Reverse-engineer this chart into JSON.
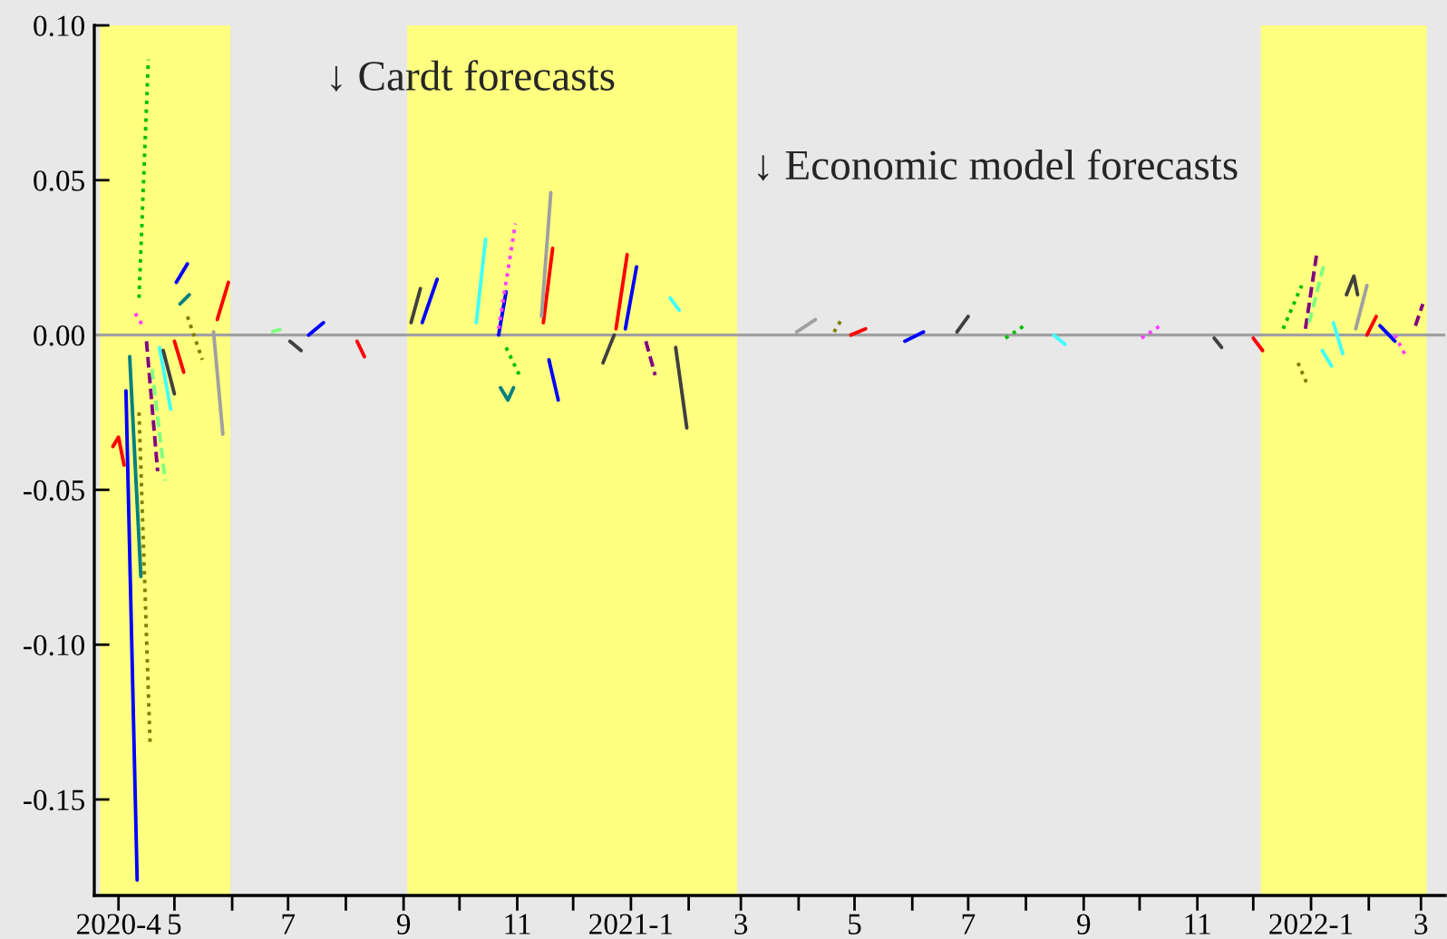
{
  "chart_data": {
    "type": "line",
    "annotations": [
      "↓ Cardt forecasts",
      "↓ Economic model forecasts"
    ],
    "xlim": [
      "2020-03-19",
      "2022-03-14"
    ],
    "xticks": [
      {
        "value": "2020-04",
        "label": "2020-4"
      },
      {
        "value": "2020-05",
        "label": "5"
      },
      {
        "value": "2020-06",
        "label": null
      },
      {
        "value": "2020-07",
        "label": "7"
      },
      {
        "value": "2020-08",
        "label": null
      },
      {
        "value": "2020-09",
        "label": "9"
      },
      {
        "value": "2020-10",
        "label": null
      },
      {
        "value": "2020-11",
        "label": "11"
      },
      {
        "value": "2020-12",
        "label": null
      },
      {
        "value": "2021-01",
        "label": "2021-1"
      },
      {
        "value": "2021-02",
        "label": null
      },
      {
        "value": "2021-03",
        "label": "3"
      },
      {
        "value": "2021-04",
        "label": null
      },
      {
        "value": "2021-05",
        "label": "5"
      },
      {
        "value": "2021-06",
        "label": null
      },
      {
        "value": "2021-07",
        "label": "7"
      },
      {
        "value": "2021-08",
        "label": null
      },
      {
        "value": "2021-09",
        "label": "9"
      },
      {
        "value": "2021-10",
        "label": null
      },
      {
        "value": "2021-11",
        "label": "11"
      },
      {
        "value": "2021-12",
        "label": null
      },
      {
        "value": "2022-01",
        "label": "2022-1"
      },
      {
        "value": "2022-02",
        "label": null
      },
      {
        "value": "2022-03",
        "label": "3"
      }
    ],
    "ylim": [
      -0.181,
      0.1
    ],
    "yticks": [
      {
        "value": -0.15,
        "label": "-0.15"
      },
      {
        "value": -0.1,
        "label": "-0.10"
      },
      {
        "value": -0.05,
        "label": "-0.05"
      },
      {
        "value": 0,
        "label": "0.00"
      },
      {
        "value": 0.05,
        "label": "0.05"
      },
      {
        "value": 0.1,
        "label": "0.10"
      }
    ],
    "marker": "none",
    "ref_lines": [
      {
        "axis": "y",
        "value": 0,
        "color": "#a0a0a0"
      }
    ],
    "bands": [
      {
        "axis": "x",
        "from": "2020-03-22",
        "to": "2020-05-31",
        "color": "#ffff80"
      },
      {
        "axis": "x",
        "from": "2020-09-03",
        "to": "2021-02-27",
        "color": "#ffff80"
      },
      {
        "axis": "x",
        "from": "2021-12-05",
        "to": "2022-03-04",
        "color": "#ffff80"
      }
    ],
    "series": [
      {
        "color": "#ff0000",
        "line_style": "solid",
        "x": [
          "2020-03-29",
          "2020-04-01",
          "2020-04-04"
        ],
        "values": [
          -0.036,
          -0.033,
          -0.042
        ]
      },
      {
        "color": "#ff0000",
        "line_style": "solid",
        "x": [
          "2020-05-01",
          "2020-05-06"
        ],
        "values": [
          -0.002,
          -0.012
        ]
      },
      {
        "color": "#ff0000",
        "line_style": "solid",
        "x": [
          "2020-05-24",
          "2020-05-30"
        ],
        "values": [
          0.005,
          0.017
        ]
      },
      {
        "color": "#ff0000",
        "line_style": "solid",
        "x": [
          "2020-08-07",
          "2020-08-11"
        ],
        "values": [
          -0.002,
          -0.007
        ]
      },
      {
        "color": "#ff0000",
        "line_style": "solid",
        "x": [
          "2020-11-15",
          "2020-11-20"
        ],
        "values": [
          0.004,
          0.028
        ]
      },
      {
        "color": "#ff0000",
        "line_style": "solid",
        "x": [
          "2020-12-24",
          "2020-12-30"
        ],
        "values": [
          0.002,
          0.026
        ]
      },
      {
        "color": "#ff0000",
        "line_style": "solid",
        "x": [
          "2021-04-29",
          "2021-05-07"
        ],
        "values": [
          0.0,
          0.002
        ]
      },
      {
        "color": "#ff0000",
        "line_style": "solid",
        "x": [
          "2021-12-01",
          "2021-12-06"
        ],
        "values": [
          -0.001,
          -0.005
        ]
      },
      {
        "color": "#ff0000",
        "line_style": "solid",
        "x": [
          "2022-01-31",
          "2022-02-05"
        ],
        "values": [
          0.0,
          0.006
        ]
      },
      {
        "color": "#0000ff",
        "line_style": "solid",
        "x": [
          "2020-04-05",
          "2020-04-11"
        ],
        "values": [
          -0.018,
          -0.176
        ]
      },
      {
        "color": "#0000ff",
        "line_style": "solid",
        "x": [
          "2020-05-02",
          "2020-05-08"
        ],
        "values": [
          0.017,
          0.023
        ]
      },
      {
        "color": "#0000ff",
        "line_style": "solid",
        "x": [
          "2020-07-12",
          "2020-07-20"
        ],
        "values": [
          0.0,
          0.004
        ]
      },
      {
        "color": "#0000ff",
        "line_style": "solid",
        "x": [
          "2020-09-11",
          "2020-09-19"
        ],
        "values": [
          0.004,
          0.018
        ]
      },
      {
        "color": "#0000ff",
        "line_style": "solid",
        "x": [
          "2020-10-22",
          "2020-10-26"
        ],
        "values": [
          0.0,
          0.014
        ]
      },
      {
        "color": "#0000ff",
        "line_style": "solid",
        "x": [
          "2020-11-18",
          "2020-11-23"
        ],
        "values": [
          -0.008,
          -0.021
        ]
      },
      {
        "color": "#0000ff",
        "line_style": "solid",
        "x": [
          "2020-12-29",
          "2021-01-04"
        ],
        "values": [
          0.002,
          0.022
        ]
      },
      {
        "color": "#0000ff",
        "line_style": "solid",
        "x": [
          "2021-05-28",
          "2021-06-07"
        ],
        "values": [
          -0.002,
          0.001
        ]
      },
      {
        "color": "#0000ff",
        "line_style": "solid",
        "x": [
          "2022-02-07",
          "2022-02-15"
        ],
        "values": [
          0.003,
          -0.002
        ]
      },
      {
        "color": "#00c000",
        "line_style": "dotted",
        "x": [
          "2020-04-12",
          "2020-04-17"
        ],
        "values": [
          0.012,
          0.089
        ]
      },
      {
        "color": "#00c000",
        "line_style": "dotted",
        "x": [
          "2020-10-26",
          "2020-11-03"
        ],
        "values": [
          -0.004,
          -0.014
        ]
      },
      {
        "color": "#00c000",
        "line_style": "dotted",
        "x": [
          "2021-07-21",
          "2021-07-31"
        ],
        "values": [
          -0.001,
          0.003
        ]
      },
      {
        "color": "#00c000",
        "line_style": "dotted",
        "x": [
          "2021-12-17",
          "2021-12-27"
        ],
        "values": [
          0.002,
          0.016
        ]
      },
      {
        "color": "#808000",
        "line_style": "dotted",
        "x": [
          "2020-04-12",
          "2020-04-18"
        ],
        "values": [
          -0.025,
          -0.133
        ]
      },
      {
        "color": "#808000",
        "line_style": "dotted",
        "x": [
          "2020-05-08",
          "2020-05-16"
        ],
        "values": [
          0.006,
          -0.008
        ]
      },
      {
        "color": "#808000",
        "line_style": "dotted",
        "x": [
          "2021-04-20",
          "2021-04-24"
        ],
        "values": [
          0.001,
          0.005
        ]
      },
      {
        "color": "#808000",
        "line_style": "dotted",
        "x": [
          "2021-12-25",
          "2021-12-30"
        ],
        "values": [
          -0.009,
          -0.016
        ]
      },
      {
        "color": "#ff40ff",
        "line_style": "dotted",
        "x": [
          "2020-04-10",
          "2020-04-14"
        ],
        "values": [
          0.007,
          0.003
        ]
      },
      {
        "color": "#ff40ff",
        "line_style": "dotted",
        "x": [
          "2020-10-22",
          "2020-10-31"
        ],
        "values": [
          0.002,
          0.036
        ]
      },
      {
        "color": "#ff40ff",
        "line_style": "dotted",
        "x": [
          "2021-10-02",
          "2021-10-12"
        ],
        "values": [
          -0.001,
          0.003
        ]
      },
      {
        "color": "#ff40ff",
        "line_style": "dotted",
        "x": [
          "2022-02-15",
          "2022-02-21"
        ],
        "values": [
          0.0,
          -0.007
        ]
      },
      {
        "color": "#40ffff",
        "line_style": "solid",
        "x": [
          "2020-04-23",
          "2020-04-29"
        ],
        "values": [
          -0.004,
          -0.024
        ]
      },
      {
        "color": "#40ffff",
        "line_style": "solid",
        "x": [
          "2020-10-10",
          "2020-10-15"
        ],
        "values": [
          0.004,
          0.031
        ]
      },
      {
        "color": "#40ffff",
        "line_style": "solid",
        "x": [
          "2021-01-22",
          "2021-01-27"
        ],
        "values": [
          0.012,
          0.008
        ]
      },
      {
        "color": "#40ffff",
        "line_style": "solid",
        "x": [
          "2021-08-16",
          "2021-08-22"
        ],
        "values": [
          0.0,
          -0.003
        ]
      },
      {
        "color": "#40ffff",
        "line_style": "solid",
        "x": [
          "2022-01-07",
          "2022-01-12"
        ],
        "values": [
          -0.005,
          -0.01
        ]
      },
      {
        "color": "#40ffff",
        "line_style": "solid",
        "x": [
          "2022-01-13",
          "2022-01-18"
        ],
        "values": [
          0.004,
          -0.006
        ]
      },
      {
        "color": "#404040",
        "line_style": "solid",
        "x": [
          "2020-04-25",
          "2020-05-01"
        ],
        "values": [
          -0.005,
          -0.019
        ]
      },
      {
        "color": "#404040",
        "line_style": "solid",
        "x": [
          "2020-07-02",
          "2020-07-08"
        ],
        "values": [
          -0.002,
          -0.005
        ]
      },
      {
        "color": "#404040",
        "line_style": "solid",
        "x": [
          "2020-09-05",
          "2020-09-10"
        ],
        "values": [
          0.004,
          0.015
        ]
      },
      {
        "color": "#404040",
        "line_style": "solid",
        "x": [
          "2020-12-17",
          "2020-12-23"
        ],
        "values": [
          -0.009,
          0.0
        ]
      },
      {
        "color": "#404040",
        "line_style": "solid",
        "x": [
          "2021-01-25",
          "2021-01-31"
        ],
        "values": [
          -0.004,
          -0.03
        ]
      },
      {
        "color": "#404040",
        "line_style": "solid",
        "x": [
          "2021-06-25",
          "2021-07-01"
        ],
        "values": [
          0.001,
          0.006
        ]
      },
      {
        "color": "#404040",
        "line_style": "solid",
        "x": [
          "2021-11-10",
          "2021-11-14"
        ],
        "values": [
          -0.001,
          -0.004
        ]
      },
      {
        "color": "#404040",
        "line_style": "solid",
        "x": [
          "2022-01-20",
          "2022-01-24",
          "2022-01-26"
        ],
        "values": [
          0.013,
          0.019,
          0.013
        ]
      },
      {
        "color": "#a0a0a0",
        "line_style": "solid",
        "x": [
          "2020-05-22",
          "2020-05-27"
        ],
        "values": [
          0.001,
          -0.032
        ]
      },
      {
        "color": "#a0a0a0",
        "line_style": "solid",
        "x": [
          "2020-11-14",
          "2020-11-19"
        ],
        "values": [
          0.006,
          0.046
        ]
      },
      {
        "color": "#a0a0a0",
        "line_style": "solid",
        "x": [
          "2021-03-31",
          "2021-04-10"
        ],
        "values": [
          0.001,
          0.005
        ]
      },
      {
        "color": "#a0a0a0",
        "line_style": "solid",
        "x": [
          "2022-01-25",
          "2022-01-31"
        ],
        "values": [
          0.002,
          0.016
        ]
      },
      {
        "color": "#008080",
        "line_style": "solid",
        "x": [
          "2020-04-07",
          "2020-04-13"
        ],
        "values": [
          -0.007,
          -0.078
        ]
      },
      {
        "color": "#008080",
        "line_style": "solid",
        "x": [
          "2020-05-04",
          "2020-05-09"
        ],
        "values": [
          0.01,
          0.013
        ]
      },
      {
        "color": "#008080",
        "line_style": "solid",
        "x": [
          "2020-10-23",
          "2020-10-27",
          "2020-10-30"
        ],
        "values": [
          -0.017,
          -0.021,
          -0.017
        ]
      },
      {
        "color": "#800080",
        "line_style": "dashed",
        "x": [
          "2020-04-16",
          "2020-04-22"
        ],
        "values": [
          -0.002,
          -0.044
        ]
      },
      {
        "color": "#800080",
        "line_style": "dashed",
        "x": [
          "2021-01-09",
          "2021-01-14"
        ],
        "values": [
          -0.002,
          -0.013
        ]
      },
      {
        "color": "#800080",
        "line_style": "dashed",
        "x": [
          "2021-12-29",
          "2022-01-04"
        ],
        "values": [
          0.002,
          0.026
        ]
      },
      {
        "color": "#800080",
        "line_style": "dashed",
        "x": [
          "2022-02-26",
          "2022-03-02"
        ],
        "values": [
          0.003,
          0.01
        ]
      },
      {
        "color": "#80ff80",
        "line_style": "dashed",
        "x": [
          "2020-04-19",
          "2020-04-26"
        ],
        "values": [
          -0.011,
          -0.047
        ]
      },
      {
        "color": "#80ff80",
        "line_style": "dashed",
        "x": [
          "2020-06-22",
          "2020-06-28"
        ],
        "values": [
          0.001,
          0.002
        ]
      },
      {
        "color": "#80ff80",
        "line_style": "dashed",
        "x": [
          "2021-12-31",
          "2022-01-08"
        ],
        "values": [
          0.004,
          0.023
        ]
      }
    ]
  }
}
